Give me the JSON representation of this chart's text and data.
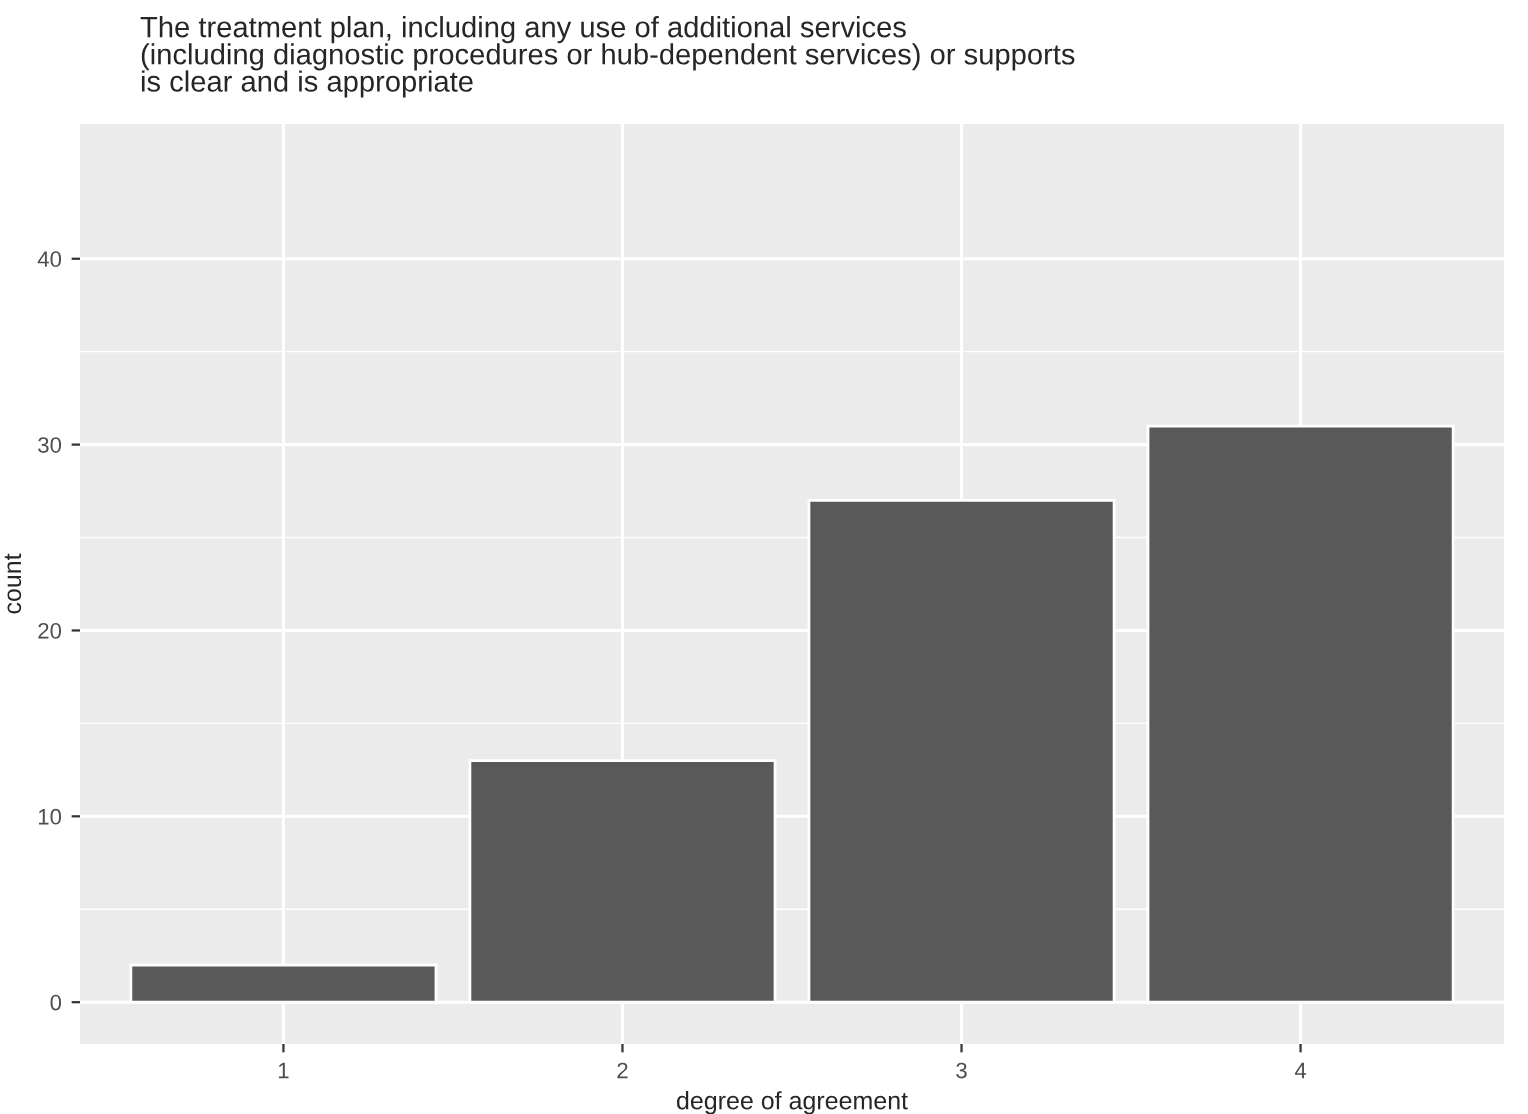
{
  "chart_data": {
    "type": "bar",
    "title": "The treatment plan, including any use of additional services\n(including diagnostic procedures or hub-dependent services) or supports\nis clear and is appropriate",
    "xlabel": "degree of agreement",
    "ylabel": "count",
    "categories": [
      "1",
      "2",
      "3",
      "4"
    ],
    "values": [
      2,
      13,
      27,
      31
    ],
    "color": "#595959",
    "ylim": [
      -2.25,
      47.25
    ],
    "yticks": [
      0,
      10,
      20,
      30,
      40
    ],
    "grid": true
  }
}
